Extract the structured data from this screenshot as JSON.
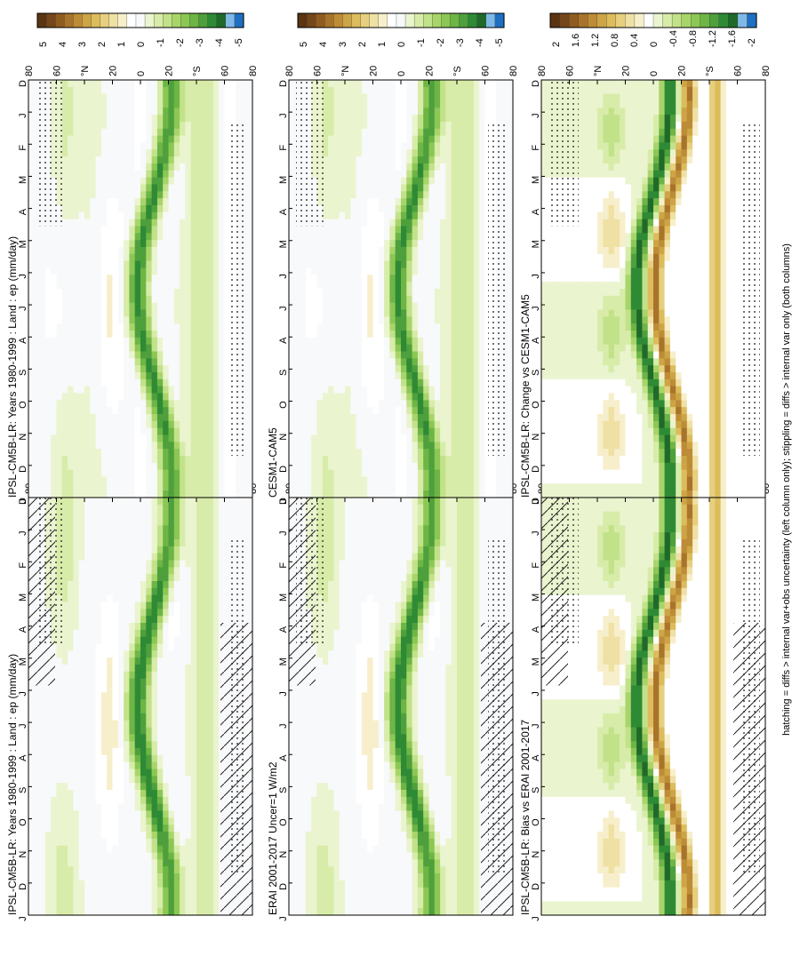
{
  "page": {
    "footer_note": "hatching = diffs > internal var+obs uncertainty (left column only); stippling = diffs > internal var only (both columns)"
  },
  "colors": {
    "field_palette": [
      "#1f6fc2",
      "#7fb9e6",
      "#1f6a2a",
      "#2f8a35",
      "#4ea03c",
      "#6db545",
      "#8cc755",
      "#a8d56a",
      "#c2e28a",
      "#d8eca9",
      "#eaf4cf",
      "#f8f9fa",
      "#ffffff",
      "#f7efcb",
      "#efe0a4",
      "#e6cf7e",
      "#dcbc5c",
      "#cda446",
      "#bd8c36",
      "#a8732a",
      "#8f5c20",
      "#74461a",
      "#5b3412"
    ],
    "diff_palette": [
      "#1f6fc2",
      "#7fb9e6",
      "#1f6a2a",
      "#2f8a35",
      "#4ea03c",
      "#6db545",
      "#8cc755",
      "#a8d56a",
      "#c2e28a",
      "#d8eca9",
      "#eaf4cf",
      "#ffffff",
      "#f7efcb",
      "#efe0a4",
      "#e6cf7e",
      "#dcbc5c",
      "#cda446",
      "#bd8c36",
      "#a8732a",
      "#8f5c20",
      "#74461a",
      "#5b3412"
    ]
  },
  "chart_data": [
    {
      "type": "heatmap",
      "id": "ipsl-climatology-left",
      "title": "IPSL-CM5B-LR: Years 1980-1999 : Land : ep (mm/day)",
      "x_tick_labels": [
        "D",
        "J",
        "F",
        "M",
        "A",
        "M",
        "J",
        "J",
        "A",
        "S",
        "O",
        "N",
        "D",
        "J"
      ],
      "y_tick_labels": [
        "80",
        "60",
        "°N",
        "20",
        "0",
        "20",
        "°S",
        "60",
        "80"
      ],
      "y_values": [
        80,
        60,
        40,
        20,
        0,
        -20,
        -40,
        -60,
        -80
      ],
      "colorbar_labels": [
        "5",
        "4",
        "3",
        "2",
        "1",
        "0",
        "-1",
        "-2",
        "-3",
        "-4",
        "-5"
      ],
      "colorbar_range": [
        5,
        -5
      ],
      "field": "ep",
      "units": "mm/day",
      "overlay": "hatching + stippling"
    },
    {
      "type": "heatmap",
      "id": "ipsl-climatology-right",
      "title": "IPSL-CM5B-LR: Years 1980-1999 : Land : ep (mm/day)",
      "x_tick_labels": [
        "D",
        "J",
        "F",
        "M",
        "A",
        "M",
        "J",
        "J",
        "A",
        "S",
        "O",
        "N",
        "D",
        "J"
      ],
      "y_tick_labels": [
        "80",
        "60",
        "°N",
        "20",
        "0",
        "20",
        "°S",
        "60",
        "80"
      ],
      "y_values": [
        80,
        60,
        40,
        20,
        0,
        -20,
        -40,
        -60,
        -80
      ],
      "colorbar_labels": [
        "5",
        "4",
        "3",
        "2",
        "1",
        "0",
        "-1",
        "-2",
        "-3",
        "-4",
        "-5"
      ],
      "colorbar_range": [
        5,
        -5
      ],
      "field": "ep",
      "units": "mm/day",
      "overlay": "stippling"
    },
    {
      "type": "heatmap",
      "id": "erai-reference",
      "title": "ERAI 2001-2017 Uncer=1 W/m2",
      "x_tick_labels": [
        "D",
        "J",
        "F",
        "M",
        "A",
        "M",
        "J",
        "J",
        "A",
        "S",
        "O",
        "N",
        "D",
        "J"
      ],
      "y_tick_labels": [
        "80",
        "60",
        "°N",
        "20",
        "0",
        "20",
        "°S",
        "60",
        "80"
      ],
      "y_values": [
        80,
        60,
        40,
        20,
        0,
        -20,
        -40,
        -60,
        -80
      ],
      "colorbar_labels": [
        "5",
        "4",
        "3",
        "2",
        "1",
        "0",
        "-1",
        "-2",
        "-3",
        "-4",
        "-5"
      ],
      "colorbar_range": [
        5,
        -5
      ],
      "overlay": "hatching + stippling"
    },
    {
      "type": "heatmap",
      "id": "cesm-reference",
      "title": "CESM1-CAM5",
      "x_tick_labels": [
        "D",
        "J",
        "F",
        "M",
        "A",
        "M",
        "J",
        "J",
        "A",
        "S",
        "O",
        "N",
        "D",
        "J"
      ],
      "y_tick_labels": [
        "80",
        "60",
        "°N",
        "20",
        "0",
        "20",
        "°S",
        "60",
        "80"
      ],
      "y_values": [
        80,
        60,
        40,
        20,
        0,
        -20,
        -40,
        -60,
        -80
      ],
      "colorbar_labels": [
        "5",
        "4",
        "3",
        "2",
        "1",
        "0",
        "-1",
        "-2",
        "-3",
        "-4",
        "-5"
      ],
      "colorbar_range": [
        5,
        -5
      ],
      "overlay": "stippling"
    },
    {
      "type": "heatmap",
      "id": "ipsl-bias-vs-erai",
      "title": "IPSL-CM5B-LR: Bias vs ERAI 2001-2017",
      "x_tick_labels": [
        "D",
        "J",
        "F",
        "M",
        "A",
        "M",
        "J",
        "J",
        "A",
        "S",
        "O",
        "N",
        "D",
        "J"
      ],
      "y_tick_labels": [
        "80",
        "60",
        "°N",
        "20",
        "0",
        "20",
        "°S",
        "60",
        "80"
      ],
      "y_values": [
        80,
        60,
        40,
        20,
        0,
        -20,
        -40,
        -60,
        -80
      ],
      "colorbar_labels": [
        "2",
        "1.6",
        "1.2",
        "0.8",
        "0.4",
        "0",
        "-0.4",
        "-0.8",
        "-1.2",
        "-1.6",
        "-2"
      ],
      "colorbar_range": [
        2,
        -2
      ],
      "overlay": "hatching + stippling"
    },
    {
      "type": "heatmap",
      "id": "ipsl-change-vs-cesm",
      "title": "IPSL-CM5B-LR: Change vs CESM1-CAM5",
      "x_tick_labels": [
        "D",
        "J",
        "F",
        "M",
        "A",
        "M",
        "J",
        "J",
        "A",
        "S",
        "O",
        "N",
        "D",
        "J"
      ],
      "y_tick_labels": [
        "80",
        "60",
        "°N",
        "20",
        "0",
        "20",
        "°S",
        "60",
        "80"
      ],
      "y_values": [
        80,
        60,
        40,
        20,
        0,
        -20,
        -40,
        -60,
        -80
      ],
      "colorbar_labels": [
        "2",
        "1.6",
        "1.2",
        "0.8",
        "0.4",
        "0",
        "-0.4",
        "-0.8",
        "-1.2",
        "-1.6",
        "-2"
      ],
      "colorbar_range": [
        2,
        -2
      ],
      "overlay": "stippling"
    }
  ]
}
